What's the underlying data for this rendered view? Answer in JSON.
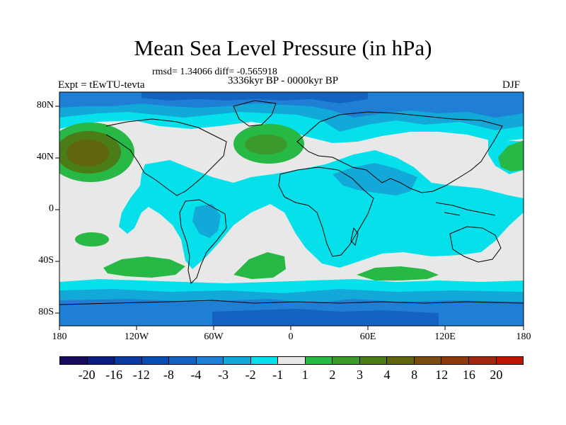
{
  "title": "Mean Sea Level Pressure (in hPa)",
  "stats": "rmsd= 1.34066  diff= -0.565918",
  "expt": "Expt = tEwTU-tevta",
  "period": "3336kyr BP - 0000kyr BP",
  "season": "DJF",
  "axes": {
    "y_labels": [
      "80N",
      "40N",
      "0",
      "40S",
      "80S"
    ],
    "x_labels": [
      "180",
      "120W",
      "60W",
      "0",
      "60E",
      "120E",
      "180"
    ]
  },
  "colorbar": {
    "colors": [
      "#1a0a5c",
      "#0c1d80",
      "#0a3aa0",
      "#0a4eb4",
      "#1563c0",
      "#1e7fd4",
      "#12a8d8",
      "#06e0ea",
      "#e8e8e8",
      "#28b846",
      "#3b9a2a",
      "#4a7c18",
      "#60650e",
      "#7a4c12",
      "#8c3a10",
      "#a02810",
      "#be1408"
    ],
    "labels": [
      "-20",
      "-16",
      "-12",
      "-8",
      "-4",
      "-3",
      "-2",
      "-1",
      "1",
      "2",
      "3",
      "4",
      "8",
      "12",
      "16",
      "20"
    ]
  }
}
